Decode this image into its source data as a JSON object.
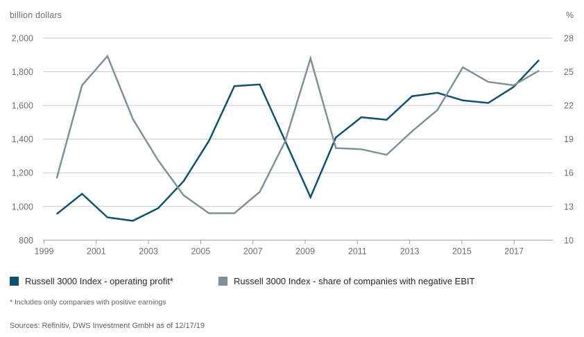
{
  "header": {
    "left_axis_title": "billion dollars",
    "right_axis_title": "%"
  },
  "colors": {
    "operating_profit_line": "#0d516f",
    "negative_ebit_line": "#7e9198",
    "gridline": "#c8c8c8",
    "axis_line": "#9d9d9d",
    "axis_text": "#6e6e6e"
  },
  "chart_data": {
    "type": "line",
    "x": [
      1999,
      2000,
      2001,
      2002,
      2003,
      2004,
      2005,
      2006,
      2007,
      2008,
      2009,
      2010,
      2011,
      2012,
      2013,
      2014,
      2015,
      2016,
      2017,
      2018
    ],
    "series": [
      {
        "name": "Russell 3000 Index - operating profit*",
        "axis": "left",
        "color": "#0d516f",
        "values": [
          955,
          1075,
          935,
          915,
          990,
          1150,
          1390,
          1715,
          1725,
          1390,
          1055,
          1410,
          1530,
          1515,
          1655,
          1675,
          1630,
          1615,
          1710,
          1870
        ]
      },
      {
        "name": "Russell 3000 Index  - share of companies with negative EBIT",
        "axis": "right",
        "color": "#7e9198",
        "values": [
          15.5,
          23.8,
          26.4,
          20.8,
          17.1,
          14.0,
          12.4,
          12.4,
          14.3,
          18.8,
          26.2,
          18.2,
          18.1,
          17.6,
          19.7,
          21.6,
          25.4,
          24.1,
          23.8,
          25.1
        ]
      }
    ],
    "left_axis": {
      "title": "billion dollars",
      "min": 800,
      "max": 2000,
      "step": 200,
      "tick_labels": [
        "2,000",
        "1,800",
        "1,600",
        "1,400",
        "1,200",
        "1,000",
        "800"
      ]
    },
    "right_axis": {
      "title": "%",
      "min": 10,
      "max": 28,
      "step": 3,
      "tick_labels": [
        "28",
        "25",
        "22",
        "19",
        "16",
        "13",
        "10"
      ]
    },
    "x_tick_labels": [
      "1999",
      "2001",
      "2003",
      "2005",
      "2007",
      "2009",
      "2011",
      "2013",
      "2015",
      "2017"
    ],
    "grid": true,
    "legend_position": "bottom"
  },
  "legend": {
    "items": [
      {
        "label": "Russell 3000 Index - operating profit*",
        "color": "#0d516f"
      },
      {
        "label": "Russell 3000 Index  - share of companies with negative EBIT",
        "color": "#7e9198"
      }
    ]
  },
  "footnote": "* Includes only companies with positive earnings",
  "sources": "Sources: Refinitiv, DWS Investment GmbH as of 12/17/19"
}
